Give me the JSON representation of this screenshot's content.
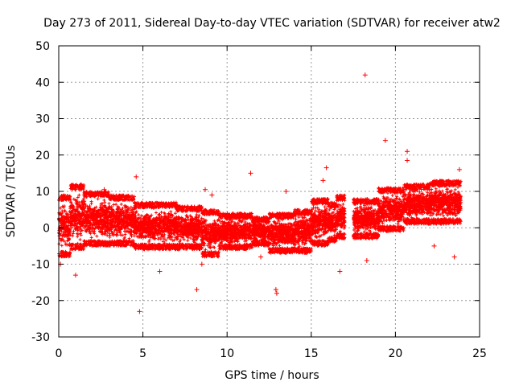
{
  "chart_data": {
    "type": "scatter",
    "title": "Day 273 of 2011, Sidereal Day-to-day VTEC variation (SDTVAR) for receiver atw2",
    "xlabel": "GPS time / hours",
    "ylabel": "SDTVAR / TECUs",
    "xlim": [
      0,
      25
    ],
    "ylim": [
      -30,
      50
    ],
    "xticks": [
      0,
      5,
      10,
      15,
      20,
      25
    ],
    "yticks": [
      -30,
      -20,
      -10,
      0,
      10,
      20,
      30,
      40,
      50
    ],
    "grid": true,
    "marker": "+",
    "color": "#ff0000",
    "series": [
      {
        "name": "SDTVAR",
        "description_of_shape": "dense band of samples; envelope [start_h, end_h, low, high]",
        "envelope": [
          [
            0.0,
            0.7,
            -8,
            9
          ],
          [
            0.7,
            1.5,
            -6,
            12
          ],
          [
            1.5,
            3.0,
            -5,
            10
          ],
          [
            3.0,
            4.5,
            -5,
            9
          ],
          [
            4.5,
            7.0,
            -6,
            7
          ],
          [
            7.0,
            8.5,
            -6,
            6
          ],
          [
            8.5,
            9.5,
            -8,
            5
          ],
          [
            9.5,
            11.5,
            -6,
            4
          ],
          [
            11.5,
            12.5,
            -5,
            3
          ],
          [
            12.5,
            14.0,
            -7,
            4
          ],
          [
            14.0,
            15.0,
            -7,
            5
          ],
          [
            15.0,
            16.0,
            -5,
            8
          ],
          [
            16.0,
            16.5,
            -4,
            7
          ],
          [
            16.5,
            17.0,
            -3,
            9
          ],
          [
            17.5,
            19.0,
            -3,
            8
          ],
          [
            19.0,
            20.5,
            -1,
            11
          ],
          [
            20.5,
            22.0,
            1,
            12
          ],
          [
            22.0,
            23.9,
            1,
            13
          ]
        ],
        "outliers": [
          {
            "x": 18.2,
            "y": 42
          },
          {
            "x": 19.4,
            "y": 24
          },
          {
            "x": 20.7,
            "y": 21
          },
          {
            "x": 20.7,
            "y": 18.5
          },
          {
            "x": 4.6,
            "y": 14
          },
          {
            "x": 4.8,
            "y": -23
          },
          {
            "x": 8.2,
            "y": -17
          },
          {
            "x": 12.9,
            "y": -17
          },
          {
            "x": 12.95,
            "y": -18
          },
          {
            "x": 16.7,
            "y": -12
          },
          {
            "x": 15.9,
            "y": 16.5
          },
          {
            "x": 11.4,
            "y": 15
          },
          {
            "x": 9.1,
            "y": 9
          },
          {
            "x": 1.0,
            "y": -13
          },
          {
            "x": 0.1,
            "y": -10
          },
          {
            "x": 6.0,
            "y": -12
          },
          {
            "x": 8.5,
            "y": -10
          },
          {
            "x": 18.3,
            "y": -9
          },
          {
            "x": 22.3,
            "y": -5
          },
          {
            "x": 23.5,
            "y": -8
          },
          {
            "x": 12.0,
            "y": -8
          },
          {
            "x": 13.5,
            "y": 10
          },
          {
            "x": 23.8,
            "y": 16
          },
          {
            "x": 15.7,
            "y": 13
          },
          {
            "x": 2.7,
            "y": 10.5
          },
          {
            "x": 8.7,
            "y": 10.5
          }
        ]
      }
    ]
  }
}
